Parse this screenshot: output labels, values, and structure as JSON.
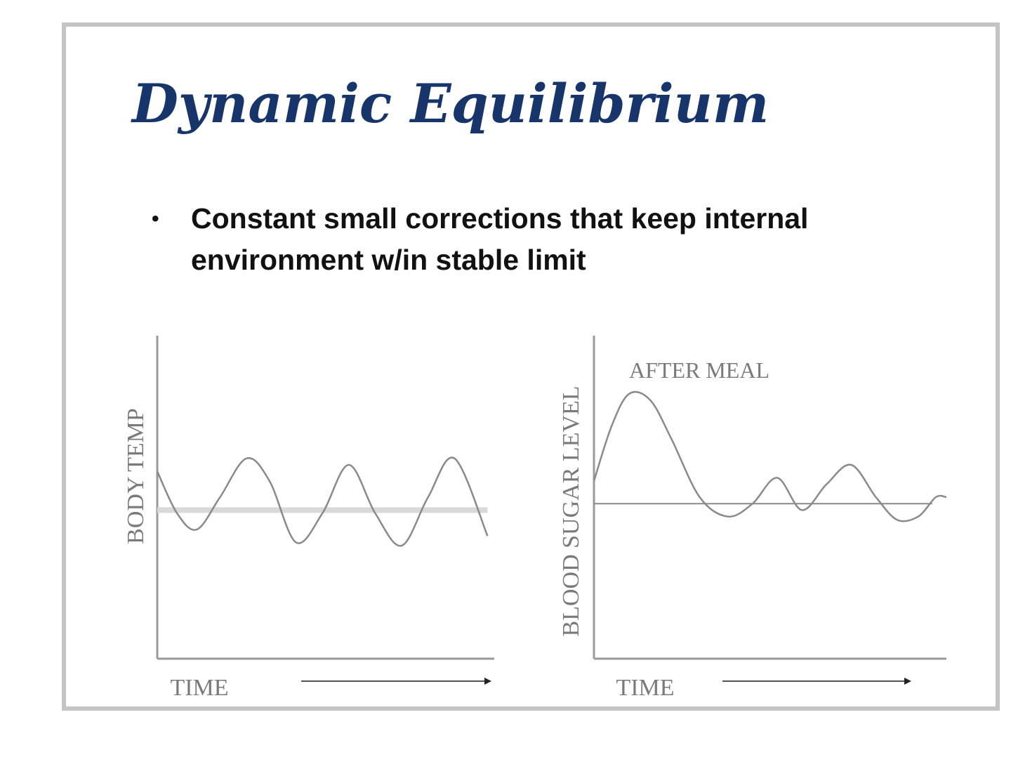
{
  "slide": {
    "title": "Dynamic Equilibrium",
    "bullets": [
      "Constant small corrections that keep internal environment w/in stable limit"
    ]
  },
  "colors": {
    "title": "#17356b",
    "body_text": "#111111",
    "axis": "#9a9a9a",
    "curve": "#8a8a8a",
    "set_point_left": "#d9d9d9",
    "set_point_right": "#8a8a8a",
    "frame": "#c4c4c4"
  },
  "chart_data": [
    {
      "type": "line",
      "ylabel": "BODY TEMP",
      "xlabel": "TIME",
      "annotations": [],
      "set_point_level": 0.46,
      "series": [
        {
          "x": [
            0,
            0.06,
            0.12,
            0.19,
            0.27,
            0.34,
            0.42,
            0.5,
            0.58,
            0.66,
            0.74,
            0.82,
            0.9,
            1.0
          ],
          "y": [
            0.58,
            0.45,
            0.4,
            0.5,
            0.62,
            0.55,
            0.36,
            0.45,
            0.6,
            0.45,
            0.35,
            0.5,
            0.62,
            0.38
          ]
        }
      ]
    },
    {
      "type": "line",
      "ylabel": "BLOOD SUGAR LEVEL",
      "xlabel": "TIME",
      "annotations": [
        "AFTER MEAL"
      ],
      "set_point_level": 0.48,
      "series": [
        {
          "x": [
            0,
            0.05,
            0.1,
            0.16,
            0.22,
            0.3,
            0.38,
            0.45,
            0.52,
            0.59,
            0.66,
            0.73,
            0.8,
            0.86,
            0.92,
            0.97,
            1.0
          ],
          "y": [
            0.55,
            0.72,
            0.82,
            0.8,
            0.68,
            0.5,
            0.44,
            0.48,
            0.56,
            0.46,
            0.54,
            0.6,
            0.5,
            0.43,
            0.44,
            0.5,
            0.5
          ]
        }
      ]
    }
  ]
}
